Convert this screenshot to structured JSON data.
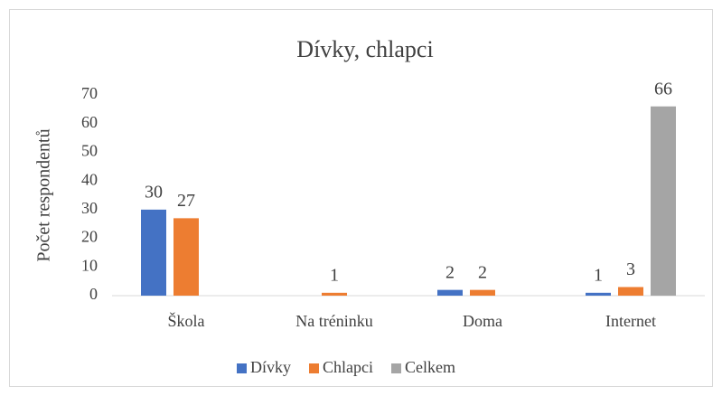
{
  "chart_data": {
    "type": "bar",
    "title": "Dívky, chlapci",
    "ylabel": "Počet respondentů",
    "categories": [
      "Škola",
      "Na tréninku",
      "Doma",
      "Internet"
    ],
    "series": [
      {
        "name": "Dívky",
        "color": "#4472c4",
        "values": [
          30,
          null,
          2,
          1
        ]
      },
      {
        "name": "Chlapci",
        "color": "#ed7d31",
        "values": [
          27,
          1,
          2,
          3
        ]
      },
      {
        "name": "Celkem",
        "color": "#a5a5a5",
        "values": [
          null,
          null,
          null,
          66
        ]
      }
    ],
    "ylim": [
      0,
      70
    ],
    "yticks": [
      0,
      10,
      20,
      30,
      40,
      50,
      60,
      70
    ],
    "grid": false,
    "legend": "bottom"
  }
}
